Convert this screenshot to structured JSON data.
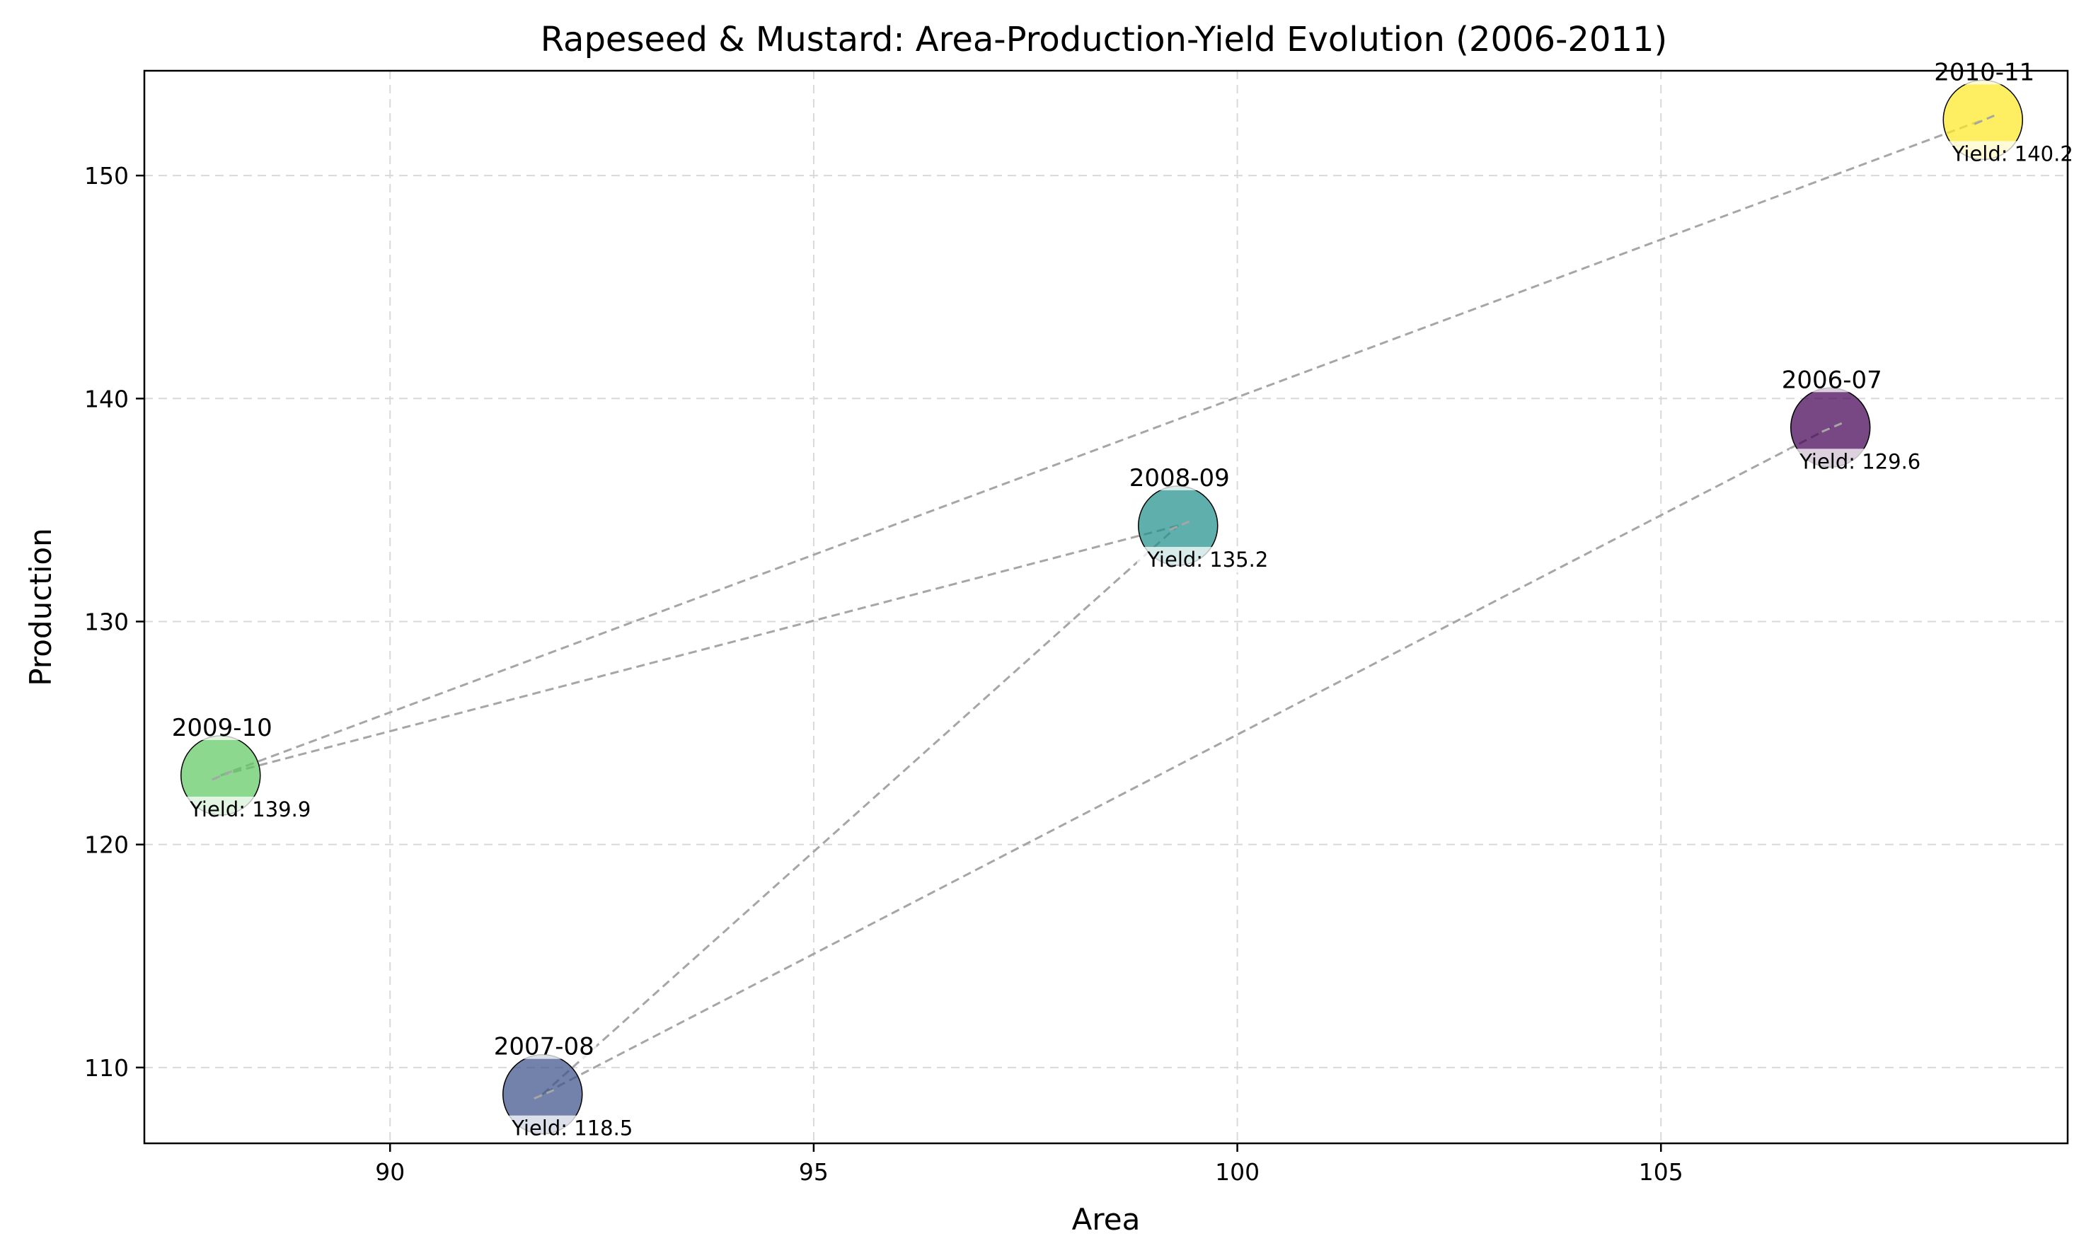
{
  "chart_data": {
    "type": "scatter",
    "title": "Rapeseed & Mustard: Area-Production-Yield Evolution (2006-2011)",
    "xlabel": "Area",
    "ylabel": "Production",
    "xlim": [
      87.1,
      109.8
    ],
    "ylim": [
      106.6,
      154.7
    ],
    "xticks": [
      90,
      95,
      100,
      105
    ],
    "xtick_labels": [
      "90",
      "95",
      "100",
      "105"
    ],
    "yticks": [
      110,
      120,
      130,
      140,
      150
    ],
    "ytick_labels": [
      "110",
      "120",
      "130",
      "140",
      "150"
    ],
    "grid": true,
    "connection_order": [
      "2006-07",
      "2007-08",
      "2008-09",
      "2009-10",
      "2010-11"
    ],
    "points": [
      {
        "label": "2006-07",
        "x": 107.0,
        "y": 138.7,
        "yield": 129.6,
        "yield_label": "Yield: 129.6",
        "color": "#440154"
      },
      {
        "label": "2007-08",
        "x": 91.8,
        "y": 108.8,
        "yield": 118.5,
        "yield_label": "Yield: 118.5",
        "color": "#3b528b"
      },
      {
        "label": "2008-09",
        "x": 99.3,
        "y": 134.3,
        "yield": 135.2,
        "yield_label": "Yield: 135.2",
        "color": "#21918c"
      },
      {
        "label": "2009-10",
        "x": 88.0,
        "y": 123.1,
        "yield": 139.9,
        "yield_label": "Yield: 139.9",
        "color": "#5ec962"
      },
      {
        "label": "2010-11",
        "x": 108.8,
        "y": 152.5,
        "yield": 140.2,
        "yield_label": "Yield: 140.2",
        "color": "#fde725"
      }
    ]
  }
}
